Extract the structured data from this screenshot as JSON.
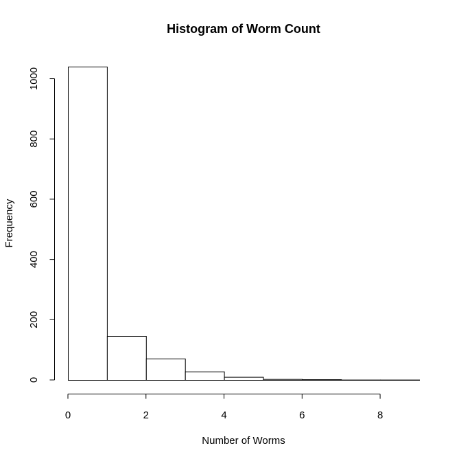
{
  "chart_data": {
    "type": "bar",
    "title": "Histogram of Worm Count",
    "xlabel": "Number of Worms",
    "ylabel": "Frequency",
    "bin_edges": [
      0,
      1,
      2,
      3,
      4,
      5,
      6,
      7,
      8,
      9
    ],
    "values": [
      1040,
      146,
      71,
      28,
      10,
      3,
      2,
      1,
      1
    ],
    "xlim": [
      0,
      9
    ],
    "ylim": [
      0,
      1040
    ],
    "x_ticks": [
      0,
      2,
      4,
      6,
      8
    ],
    "x_tick_labels": [
      "0",
      "2",
      "4",
      "6",
      "8"
    ],
    "y_ticks": [
      0,
      200,
      400,
      600,
      800,
      1000
    ],
    "y_tick_labels": [
      "0",
      "200",
      "400",
      "600",
      "800",
      "1000"
    ],
    "grid": false,
    "legend": "none",
    "bar_fill": "#ffffff",
    "bar_stroke": "#000000"
  }
}
